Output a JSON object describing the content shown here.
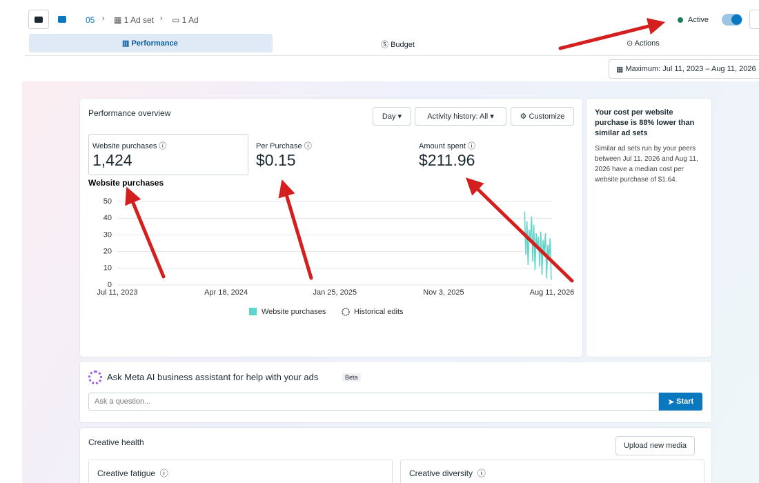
{
  "breadcrumb": {
    "campaign": "05",
    "ad_set": "1 Ad set",
    "ad": "1 Ad"
  },
  "status": "Active",
  "tabs": [
    "Performance",
    "Budget",
    "Actions"
  ],
  "date_range": "Maximum: Jul 11, 2023 – Aug 11, 2026",
  "overview": {
    "title": "Performance overview",
    "controls": [
      "Day",
      "Activity history: All",
      "Customize"
    ],
    "metrics": [
      {
        "label": "Website purchases",
        "value": "1,424"
      },
      {
        "label": "Per Purchase",
        "value": "$0.15"
      },
      {
        "label": "Amount spent",
        "value": "$211.96"
      }
    ]
  },
  "chart_data": {
    "type": "line",
    "title": "Website purchases",
    "x": [
      "2026-06-01",
      "2026-06-04",
      "2026-06-07",
      "2026-06-10",
      "2026-06-13",
      "2026-06-16",
      "2026-06-19",
      "2026-06-22",
      "2026-06-25",
      "2026-06-28",
      "2026-07-01",
      "2026-07-04",
      "2026-07-07",
      "2026-07-10",
      "2026-07-13",
      "2026-07-16",
      "2026-07-19",
      "2026-07-22",
      "2026-07-25",
      "2026-07-28",
      "2026-07-31",
      "2026-08-03",
      "2026-08-06",
      "2026-08-09"
    ],
    "series": [
      {
        "name": "Website purchases",
        "color": "#5cd6cb",
        "values": [
          44,
          18,
          38,
          12,
          33,
          26,
          41,
          14,
          36,
          9,
          31,
          22,
          29,
          11,
          32,
          6,
          27,
          19,
          31,
          4,
          24,
          15,
          28,
          3
        ]
      }
    ],
    "legend_extra": "Historical edits",
    "xlim": [
      "2023-07-11",
      "2026-08-11"
    ],
    "xticks": [
      {
        "value": "2023-07-11",
        "label": "Jul 11, 2023"
      },
      {
        "value": "2024-04-18",
        "label": "Apr 18, 2024"
      },
      {
        "value": "2025-01-25",
        "label": "Jan 25, 2025"
      },
      {
        "value": "2025-11-03",
        "label": "Nov 3, 2025"
      },
      {
        "value": "2026-08-11",
        "label": "Aug 11, 2026"
      }
    ],
    "ylim": [
      0,
      50
    ],
    "yticks": [
      0,
      10,
      20,
      30,
      40,
      50
    ],
    "grid": true
  },
  "insight": {
    "heading": "Your cost per website purchase is 88% lower than similar ad sets",
    "body": "Similar ad sets run by your peers between Jul 11, 2026 and Aug 11, 2026 have a median cost per website purchase of $1.64."
  },
  "assistant": {
    "title": "Ask Meta AI business assistant for help with your ads",
    "badge": "Beta",
    "placeholder": "Ask a question...",
    "button": "Start"
  },
  "creative_health": {
    "title": "Creative health",
    "button": "Upload new media",
    "sections": [
      "Creative fatigue",
      "Creative diversity"
    ]
  }
}
